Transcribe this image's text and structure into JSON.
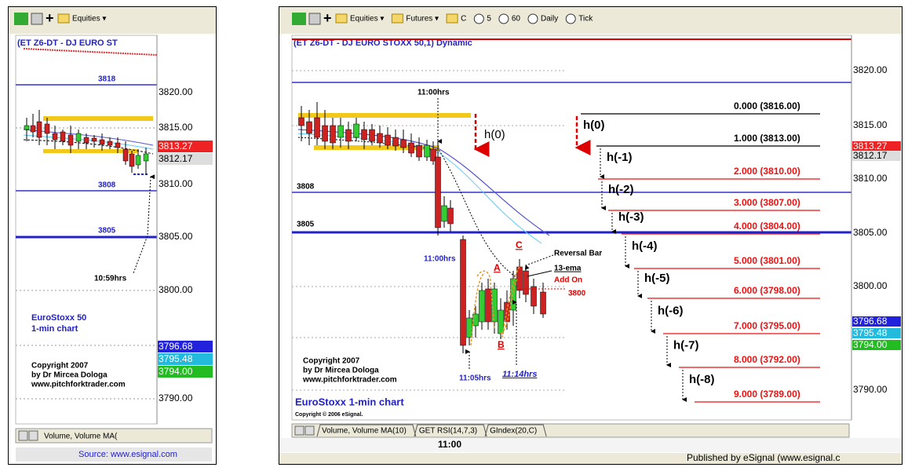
{
  "left": {
    "toolbar": [
      "Equities ▾"
    ],
    "title": "(ET Z6-DT - DJ EURO ST",
    "price_labels": [
      "3820.00",
      "3815.00",
      "3810.00",
      "3805.00",
      "3800.00",
      "3790.00"
    ],
    "level_labels": [
      "3818",
      "3808",
      "3805"
    ],
    "badges": [
      "3813.27",
      "3812.17",
      "3796.68",
      "3795.48",
      "3794.00"
    ],
    "annotation": "10:59hrs",
    "chart_label": [
      "EuroStoxx 50",
      "1-min chart"
    ],
    "copyright": [
      "Copyright 2007",
      "by Dr Mircea Dologa",
      "www.pitchforktrader.com"
    ],
    "tab": "Volume, Volume MA(",
    "source": "Source: www.esignal.com"
  },
  "right": {
    "toolbar": [
      "Equities ▾",
      "Futures ▾",
      "C",
      "5",
      "60",
      "Daily",
      "Tick"
    ],
    "title": "(ET Z6-DT - DJ EURO STOXX 50,1) Dynamic",
    "price_labels": [
      "3820.00",
      "3815.00",
      "3810.00",
      "3805.00",
      "3800.00",
      "3790.00"
    ],
    "level_labels": [
      "3808",
      "3805"
    ],
    "badges": [
      "3813.27",
      "3812.17",
      "3796.68",
      "3795.48",
      "3794.00"
    ],
    "annotations": {
      "time_top": "11:00hrs",
      "time_mid": "11:00hrs",
      "time_low": "11:05hrs",
      "time_end": "11:14hrs",
      "reversal": "Reversal Bar",
      "ema": "13-ema",
      "add_on": "Add On",
      "add_on_price": "3800",
      "a": "A",
      "b": "B",
      "c": "C",
      "h0": "h(0)"
    },
    "fib_levels": [
      {
        "label": "0.000 (3816.00)",
        "step": "h(0)"
      },
      {
        "label": "1.000 (3813.00)",
        "step": "h(-1)"
      },
      {
        "label": "2.000 (3810.00)",
        "step": "h(-2)"
      },
      {
        "label": "3.000 (3807.00)",
        "step": "h(-3)"
      },
      {
        "label": "4.000 (3804.00)",
        "step": "h(-4)"
      },
      {
        "label": "5.000 (3801.00)",
        "step": "h(-5)"
      },
      {
        "label": "6.000 (3798.00)",
        "step": "h(-6)"
      },
      {
        "label": "7.000 (3795.00)",
        "step": "h(-7)"
      },
      {
        "label": "8.000 (3792.00)",
        "step": "h(-8)"
      },
      {
        "label": "9.000 (3789.00)"
      }
    ],
    "copyright": [
      "Copyright 2007",
      "by Dr Mircea Dologa",
      "www.pitchforktrader.com"
    ],
    "chart_label": "EuroStoxx 1-min chart",
    "esignal_copyright": "Copyright © 2006 eSignal.",
    "tabs": [
      "Volume, Volume MA(10)",
      "GET RSI(14,7,3)",
      "GIndex(20,C)"
    ],
    "time_label": "11:00",
    "published": "Published by eSignal (www.esignal.c"
  }
}
